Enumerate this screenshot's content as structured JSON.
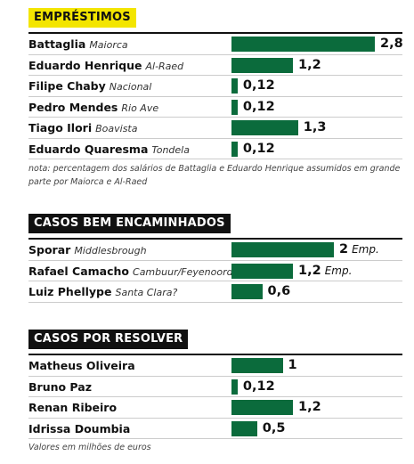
{
  "chart_data": [
    {
      "type": "bar",
      "title": "EMPRÉSTIMOS",
      "categories": [
        "Battaglia",
        "Eduardo Henrique",
        "Filipe Chaby",
        "Pedro Mendes",
        "Tiago Ilori",
        "Eduardo Quaresma"
      ],
      "clubs": [
        "Maiorca",
        "Al-Raed",
        "Nacional",
        "Rio Ave",
        "Boavista",
        "Tondela"
      ],
      "values": [
        2.8,
        1.2,
        0.12,
        0.12,
        1.3,
        0.12
      ],
      "value_labels": [
        "2,8",
        "1,2",
        "0,12",
        "0,12",
        "1,3",
        "0,12"
      ],
      "color": "#0b6b3c",
      "note": "nota: percentagem dos salários de Battaglia e Eduardo Henrique assumidos em grande parte por Maiorca e Al-Raed"
    },
    {
      "type": "bar",
      "title": "CASOS BEM ENCAMINHADOS",
      "categories": [
        "Sporar",
        "Rafael Camacho",
        "Luiz Phellype"
      ],
      "clubs": [
        "Middlesbrough",
        "Cambuur/Feyenoord",
        "Santa Clara?"
      ],
      "values": [
        2,
        1.2,
        0.6
      ],
      "value_labels": [
        "2",
        "1,2",
        "0,6"
      ],
      "unit_labels": [
        "Emp.",
        "Emp.",
        null
      ],
      "color": "#0b6b3c"
    },
    {
      "type": "bar",
      "title": "CASOS POR RESOLVER",
      "categories": [
        "Matheus Oliveira",
        "Bruno Paz",
        "Renan Ribeiro",
        "Idrissa Doumbia"
      ],
      "values": [
        1,
        0.12,
        1.2,
        0.5
      ],
      "value_labels": [
        "1",
        "0,12",
        "1,2",
        "0,5"
      ],
      "color": "#0b6b3c"
    }
  ],
  "footer": "Valores em milhões de euros"
}
